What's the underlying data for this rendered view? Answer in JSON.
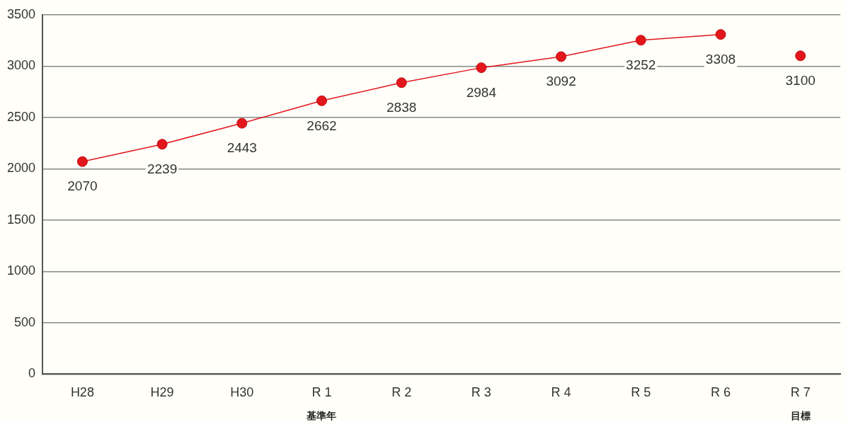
{
  "chart_data": {
    "type": "line",
    "categories": [
      "H28",
      "H29",
      "H30",
      "R 1\n基準年",
      "R 2",
      "R 3",
      "R 4",
      "R 5",
      "R 6",
      "R 7\n目標"
    ],
    "series": [
      {
        "type": "line",
        "color": "#e3161c",
        "values": [
          2070,
          2239,
          2443,
          2662,
          2838,
          2984,
          3092,
          3252,
          3308,
          null
        ]
      },
      {
        "type": "scatter",
        "color": "#e3161c",
        "values": [
          null,
          null,
          null,
          null,
          null,
          null,
          null,
          null,
          null,
          3100
        ]
      }
    ],
    "ylim": [
      0,
      3500
    ],
    "yticks": [
      0,
      500,
      1000,
      1500,
      2000,
      2500,
      3000,
      3500
    ],
    "grid": "y",
    "legend": false,
    "marker": "circle",
    "line_style": "solid",
    "data_labels": true
  }
}
